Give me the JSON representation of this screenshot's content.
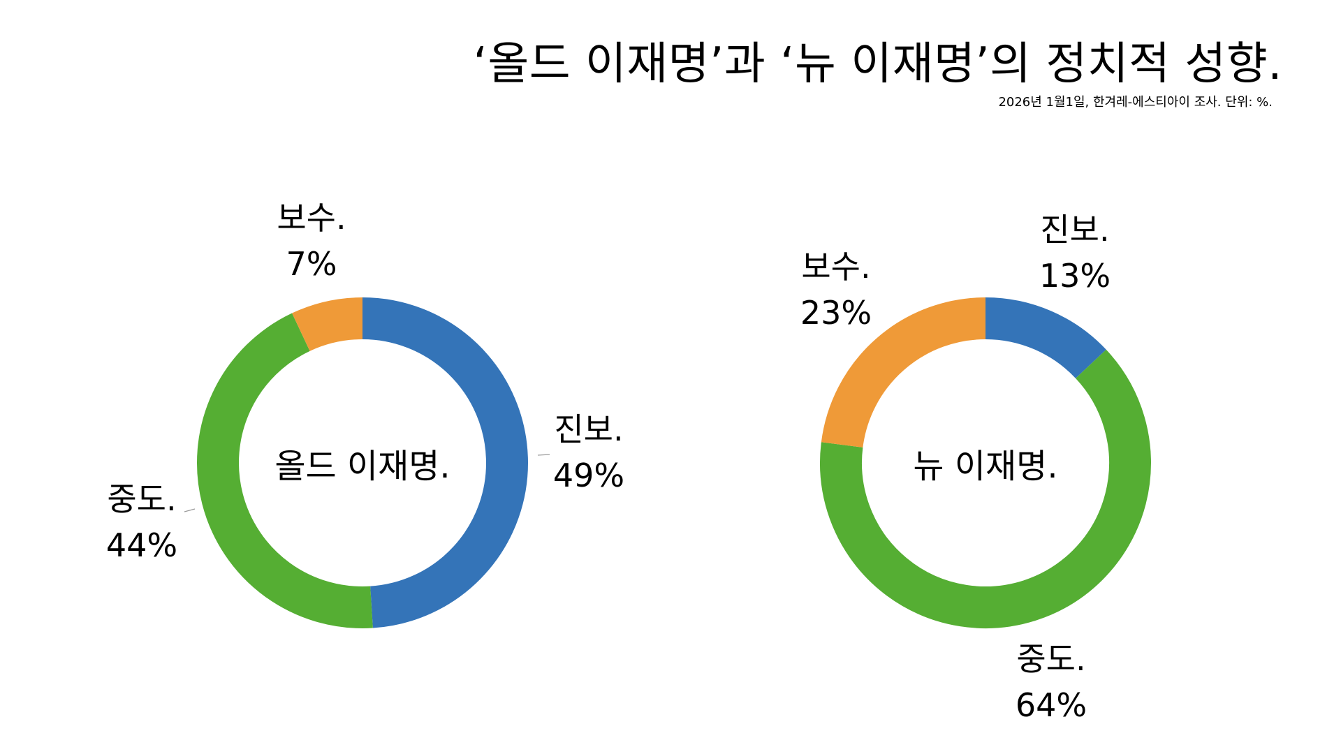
{
  "title": "‘올드 이재명’과 ‘뉴 이재명’의 정치적 성향.",
  "subtitle": "2026년 1월1일, 한겨레-에스티아이 조사. 단위: %.",
  "colors": {
    "progressive": "#3474B8",
    "moderate": "#55AE33",
    "conservative": "#EF9A38",
    "leader_line": "#9A9A9A"
  },
  "chart_data": [
    {
      "type": "pie",
      "donut": true,
      "center_label": "올드 이재명.",
      "categories": [
        "진보.",
        "중도.",
        "보수."
      ],
      "values": [
        49,
        44,
        7
      ],
      "value_labels": [
        "49%",
        "44%",
        "7%"
      ],
      "start_angle_deg": 0,
      "direction": "clockwise"
    },
    {
      "type": "pie",
      "donut": true,
      "center_label": "뉴 이재명.",
      "categories": [
        "진보.",
        "중도.",
        "보수."
      ],
      "values": [
        13,
        64,
        23
      ],
      "value_labels": [
        "13%",
        "64%",
        "23%"
      ],
      "start_angle_deg": 0,
      "direction": "clockwise"
    }
  ]
}
